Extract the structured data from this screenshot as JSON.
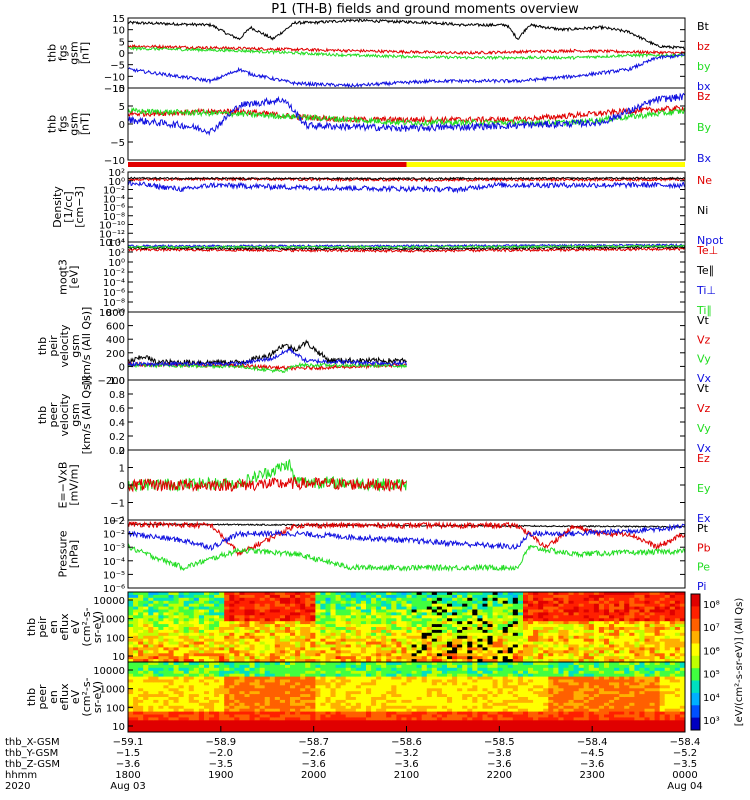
{
  "title": "P1 (TH-B) fields and ground moments overview",
  "colors": {
    "black": "#000000",
    "red": "#e00000",
    "green": "#22dd22",
    "blue": "#1010e0",
    "yellow": "#ffff00"
  },
  "chart_data": [
    {
      "type": "line",
      "panel": "fgs_gsm",
      "ylabel": [
        "thb",
        "fgs",
        "gsm",
        "[nT]"
      ],
      "ylim": [
        -15,
        15
      ],
      "ticks": [
        "15",
        "10",
        "5",
        "0",
        "−5",
        "−10",
        "−15"
      ],
      "legend": [
        {
          "name": "Bt",
          "color": "#000000"
        },
        {
          "name": "bz",
          "color": "#e00000"
        },
        {
          "name": "by",
          "color": "#22dd22"
        },
        {
          "name": "bx",
          "color": "#1010e0"
        }
      ],
      "series": [
        {
          "name": "Bt",
          "color": "#000000",
          "x": [
            0,
            0.15,
            0.18,
            0.2,
            0.22,
            0.26,
            0.3,
            0.33,
            0.4,
            0.55,
            0.6,
            0.68,
            0.7,
            0.72,
            0.78,
            0.85,
            0.9,
            0.95,
            1
          ],
          "y": [
            13,
            12,
            8,
            6,
            11,
            6,
            13,
            13,
            14,
            13,
            12,
            12,
            6,
            12,
            10,
            11,
            9,
            3,
            2
          ],
          "noise": 0.6
        },
        {
          "name": "bz",
          "color": "#e00000",
          "x": [
            0,
            0.2,
            0.4,
            0.6,
            0.8,
            1
          ],
          "y": [
            3,
            2,
            1,
            0,
            1,
            0
          ],
          "noise": 0.6
        },
        {
          "name": "by",
          "color": "#22dd22",
          "x": [
            0,
            0.2,
            0.4,
            0.6,
            0.8,
            0.9,
            1
          ],
          "y": [
            2,
            1,
            -1,
            -2,
            -2,
            -1,
            -1
          ],
          "noise": 0.6
        },
        {
          "name": "bx",
          "color": "#1010e0",
          "x": [
            0,
            0.15,
            0.2,
            0.22,
            0.3,
            0.4,
            0.55,
            0.7,
            0.8,
            0.9,
            0.95,
            1
          ],
          "y": [
            -7,
            -12,
            -7,
            -9,
            -13,
            -14,
            -12,
            -12,
            -10,
            -7,
            -2,
            -1
          ],
          "noise": 0.7
        }
      ]
    },
    {
      "type": "line",
      "panel": "fgs_gse",
      "ylabel": [
        "thb",
        "fgs",
        "gsm",
        "[nT]"
      ],
      "ylim": [
        -15,
        10
      ],
      "ticks": [
        "10",
        "5",
        "0",
        "−5",
        "−10"
      ],
      "legend": [
        {
          "name": "Bz",
          "color": "#e00000"
        },
        {
          "name": "By",
          "color": "#22dd22"
        },
        {
          "name": "Bx",
          "color": "#1010e0"
        }
      ],
      "series": [
        {
          "name": "Bz",
          "color": "#e00000",
          "x": [
            0,
            0.2,
            0.3,
            0.4,
            0.7,
            0.9,
            1
          ],
          "y": [
            1,
            2,
            0,
            -1,
            -1,
            2,
            3
          ],
          "noise": 1
        },
        {
          "name": "By",
          "color": "#22dd22",
          "x": [
            0,
            0.2,
            0.3,
            0.5,
            0.8,
            1
          ],
          "y": [
            2,
            1,
            0,
            -2,
            -2,
            2
          ],
          "noise": 1
        },
        {
          "name": "Bx",
          "color": "#1010e0",
          "x": [
            0,
            0.1,
            0.15,
            0.2,
            0.28,
            0.32,
            0.5,
            0.7,
            0.85,
            0.95,
            1
          ],
          "y": [
            -1,
            -3,
            -5,
            4,
            6,
            -3,
            -4,
            -3,
            -2,
            6,
            7
          ],
          "noise": 1.2
        }
      ]
    },
    {
      "type": "line",
      "panel": "density",
      "log": true,
      "ylabel": [
        "Density",
        "[1/cc]",
        "[cm−3]"
      ],
      "ylim": [
        -14,
        2
      ],
      "ticks": [
        "10²",
        "10⁰",
        "10⁻²",
        "10⁻⁴",
        "10⁻⁶",
        "10⁻⁸",
        "10⁻¹⁰",
        "10⁻¹²",
        "10⁻¹⁴"
      ],
      "legend": [
        {
          "name": "Ne",
          "color": "#e00000"
        },
        {
          "name": "Ni",
          "color": "#000000"
        },
        {
          "name": "Npot",
          "color": "#1010e0"
        }
      ],
      "series": [
        {
          "name": "Ne",
          "color": "#e00000",
          "x": [
            0,
            0.2,
            0.5,
            1
          ],
          "y": [
            0.3,
            0.4,
            0.2,
            0.3
          ],
          "noise": 0.3
        },
        {
          "name": "Ni",
          "color": "#000000",
          "x": [
            0,
            0.2,
            0.5,
            1
          ],
          "y": [
            0.6,
            0.5,
            0.5,
            0.6
          ],
          "noise": 0.2
        },
        {
          "name": "Npot",
          "color": "#1010e0",
          "x": [
            0,
            0.1,
            0.15,
            0.3,
            0.6,
            0.65,
            1
          ],
          "y": [
            -0.5,
            -2,
            -1,
            -1.5,
            -2,
            -1,
            -1
          ],
          "noise": 0.6
        }
      ]
    },
    {
      "type": "line",
      "panel": "moqt3",
      "log": true,
      "ylabel": [
        "moqt3",
        "[eV]"
      ],
      "ylim": [
        -10,
        4
      ],
      "ticks": [
        "10⁴",
        "10²",
        "10⁰",
        "10⁻²",
        "10⁻⁴",
        "10⁻⁶",
        "10⁻⁸",
        "10⁻¹⁰"
      ],
      "legend": [
        {
          "name": "Te⊥",
          "color": "#e00000"
        },
        {
          "name": "Te∥",
          "color": "#000000"
        },
        {
          "name": "Ti⊥",
          "color": "#1010e0"
        },
        {
          "name": "Ti∥",
          "color": "#22dd22"
        }
      ],
      "series": [
        {
          "name": "Te⊥",
          "color": "#e00000",
          "x": [
            0,
            0.5,
            1
          ],
          "y": [
            2.5,
            2.2,
            2.6
          ],
          "noise": 0.25
        },
        {
          "name": "Te∥",
          "color": "#000000",
          "x": [
            0,
            0.5,
            1
          ],
          "y": [
            2.8,
            2.6,
            3
          ],
          "noise": 0.2
        },
        {
          "name": "Ti⊥",
          "color": "#1010e0",
          "x": [
            0,
            0.5,
            1
          ],
          "y": [
            3.2,
            3.2,
            3.4
          ],
          "noise": 0.2
        },
        {
          "name": "Ti∥",
          "color": "#22dd22",
          "x": [
            0,
            0.5,
            1
          ],
          "y": [
            3,
            3,
            3.2
          ],
          "noise": 0.2
        }
      ]
    },
    {
      "type": "line",
      "panel": "peir_velocity",
      "ylabel": [
        "thb",
        "peir",
        "velocity",
        "gsm",
        "[km/s (All Qs)]"
      ],
      "ylim": [
        -200,
        800
      ],
      "ticks": [
        "800",
        "600",
        "400",
        "200",
        "0",
        "−200"
      ],
      "legend": [
        {
          "name": "Vt",
          "color": "#000000"
        },
        {
          "name": "Vz",
          "color": "#e00000"
        },
        {
          "name": "Vy",
          "color": "#22dd22"
        },
        {
          "name": "Vx",
          "color": "#1010e0"
        }
      ],
      "series": [
        {
          "name": "Vt",
          "color": "#000000",
          "x": [
            0,
            0.03,
            0.05,
            0.2,
            0.25,
            0.28,
            0.3,
            0.32,
            0.36,
            0.5
          ],
          "y": [
            60,
            150,
            60,
            60,
            150,
            320,
            250,
            350,
            90,
            80
          ],
          "noise": 40
        },
        {
          "name": "Vz",
          "color": "#e00000",
          "x": [
            0,
            0.2,
            0.3,
            0.5
          ],
          "y": [
            30,
            10,
            -30,
            20
          ],
          "noise": 25
        },
        {
          "name": "Vy",
          "color": "#22dd22",
          "x": [
            0,
            0.2,
            0.28,
            0.3,
            0.5
          ],
          "y": [
            20,
            0,
            -80,
            20,
            10
          ],
          "noise": 25
        },
        {
          "name": "Vx",
          "color": "#1010e0",
          "x": [
            0,
            0.2,
            0.26,
            0.29,
            0.32,
            0.5
          ],
          "y": [
            30,
            40,
            120,
            250,
            80,
            40
          ],
          "noise": 30
        }
      ]
    },
    {
      "type": "line",
      "panel": "peer_velocity",
      "ylabel": [
        "thb",
        "peer",
        "velocity",
        "gsm",
        "[km/s (All Qs)]"
      ],
      "ylim": [
        0,
        1
      ],
      "ticks": [
        "1.0",
        "0.8",
        "0.6",
        "0.4",
        "0.2",
        "0.0"
      ],
      "legend": [
        {
          "name": "Vt",
          "color": "#000000"
        },
        {
          "name": "Vz",
          "color": "#e00000"
        },
        {
          "name": "Vy",
          "color": "#22dd22"
        },
        {
          "name": "Vx",
          "color": "#1010e0"
        }
      ],
      "series": []
    },
    {
      "type": "line",
      "panel": "efield",
      "ylabel": [
        "E=−VxB",
        "[mV/m]"
      ],
      "ylim": [
        -2,
        2
      ],
      "ticks": [
        "2",
        "1",
        "0",
        "−1",
        "−2"
      ],
      "legend": [
        {
          "name": "Ez",
          "color": "#e00000"
        },
        {
          "name": "Ey",
          "color": "#22dd22"
        },
        {
          "name": "Ex",
          "color": "#1010e0"
        }
      ],
      "series": [
        {
          "name": "Ey",
          "color": "#22dd22",
          "x": [
            0,
            0.2,
            0.29,
            0.3,
            0.5
          ],
          "y": [
            0,
            0.1,
            1.2,
            0.2,
            0
          ],
          "noise": 0.35
        },
        {
          "name": "Ez",
          "color": "#e00000",
          "x": [
            0,
            0.2,
            0.3,
            0.5
          ],
          "y": [
            0,
            0,
            0.1,
            0
          ],
          "noise": 0.35
        }
      ]
    },
    {
      "type": "line",
      "panel": "pressure",
      "log": true,
      "ylabel": [
        "Pressure",
        "[nPa]"
      ],
      "ylim": [
        -6,
        -1
      ],
      "ticks": [
        "10⁻¹",
        "10⁻²",
        "10⁻³",
        "10⁻⁴",
        "10⁻⁵",
        "10⁻⁶"
      ],
      "legend": [
        {
          "name": "Pt",
          "color": "#000000"
        },
        {
          "name": "Pb",
          "color": "#e00000"
        },
        {
          "name": "Pe",
          "color": "#22dd22"
        },
        {
          "name": "Pi",
          "color": "#1010e0"
        }
      ],
      "series": [
        {
          "name": "Pt",
          "color": "#000000",
          "x": [
            0,
            0.5,
            1
          ],
          "y": [
            -1.3,
            -1.4,
            -1.5
          ],
          "noise": 0.05
        },
        {
          "name": "Pb",
          "color": "#e00000",
          "x": [
            0,
            0.15,
            0.2,
            0.3,
            0.7,
            0.75,
            0.8,
            0.85,
            0.9,
            0.95,
            1
          ],
          "y": [
            -1.3,
            -1.4,
            -3.5,
            -1.4,
            -1.4,
            -3,
            -1.5,
            -2,
            -2,
            -3,
            -2
          ],
          "noise": 0.2
        },
        {
          "name": "Pe",
          "color": "#22dd22",
          "x": [
            0,
            0.1,
            0.2,
            0.3,
            0.4,
            0.7,
            0.72,
            0.8,
            1
          ],
          "y": [
            -3,
            -4.5,
            -3.2,
            -3.5,
            -4.5,
            -4.5,
            -3,
            -3.5,
            -3.3
          ],
          "noise": 0.2
        },
        {
          "name": "Pi",
          "color": "#1010e0",
          "x": [
            0,
            0.1,
            0.15,
            0.2,
            0.3,
            0.5,
            0.7,
            0.72,
            0.8,
            0.9,
            1
          ],
          "y": [
            -2,
            -2.5,
            -3,
            -2,
            -2,
            -2.5,
            -3,
            -2,
            -2,
            -1.8,
            -1.5
          ],
          "noise": 0.2
        }
      ]
    },
    {
      "type": "heatmap",
      "panel": "peir_eflux",
      "ylabel": [
        "thb",
        "peir",
        "en",
        "eflux",
        "eV",
        "(cm²-s-",
        "sr-eV)"
      ],
      "ticks": [
        "10000",
        "1000",
        "100",
        "10"
      ],
      "colorbar_ticks": [
        "10⁸",
        "10⁷",
        "10⁶",
        "10⁵",
        "10⁴",
        "10³"
      ]
    },
    {
      "type": "heatmap",
      "panel": "peer_eflux",
      "ylabel": [
        "thb",
        "peer",
        "en",
        "eflux",
        "eV",
        "(cm²-s-",
        "sr-eV)"
      ],
      "ticks": [
        "10000",
        "1000",
        "100",
        "10"
      ],
      "colorbar_ticks": [
        "10⁸",
        "10⁷",
        "10⁶",
        "10⁵",
        "10⁴",
        "10³"
      ]
    }
  ],
  "colorbar_label": "[eV/(cm²-s-sr-eV)] (All Qs)",
  "xaxis": {
    "labels": [
      "thb_X-GSM",
      "thb_Y-GSM",
      "thb_Z-GSM",
      "hhmm",
      "2020"
    ],
    "columns": [
      [
        "−59.1",
        "−1.5",
        "−3.6",
        "1800",
        "Aug 03"
      ],
      [
        "−58.9",
        "−2.0",
        "−3.5",
        "1900",
        ""
      ],
      [
        "−58.7",
        "−2.6",
        "−3.6",
        "2000",
        ""
      ],
      [
        "−58.6",
        "−3.2",
        "−3.6",
        "2100",
        ""
      ],
      [
        "−58.5",
        "−3.8",
        "−3.6",
        "2200",
        ""
      ],
      [
        "−58.4",
        "−4.5",
        "−3.6",
        "2300",
        ""
      ],
      [
        "−58.4",
        "−5.2",
        "−3.5",
        "0000",
        "Aug 04"
      ]
    ]
  }
}
